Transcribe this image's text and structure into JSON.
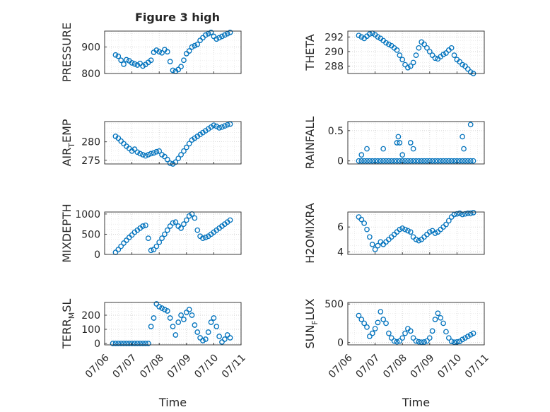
{
  "title": "Figure 3 high",
  "colors": {
    "marker": "#0072BD",
    "axis": "#262626",
    "grid": "#c8c8c8",
    "background": "#ffffff"
  },
  "x_tick_labels": [
    "07/06",
    "07/07",
    "07/08",
    "07/09",
    "07/10",
    "07/11"
  ],
  "chart_data": [
    {
      "type": "scatter",
      "ylabel_main": "PRESSURE",
      "ylabel_sub": "",
      "xlim": [
        0,
        5
      ],
      "ylim": [
        800,
        960
      ],
      "yticks": [
        800,
        900
      ],
      "show_xticks": false,
      "grid": true,
      "x": [
        0.4,
        0.5,
        0.6,
        0.7,
        0.8,
        0.9,
        1.0,
        1.1,
        1.2,
        1.3,
        1.4,
        1.5,
        1.6,
        1.7,
        1.8,
        1.9,
        2.0,
        2.1,
        2.2,
        2.3,
        2.4,
        2.5,
        2.6,
        2.7,
        2.8,
        2.9,
        3.0,
        3.1,
        3.2,
        3.3,
        3.4,
        3.5,
        3.6,
        3.7,
        3.8,
        3.9,
        4.0,
        4.1,
        4.2,
        4.3,
        4.4,
        4.5,
        4.6
      ],
      "y": [
        870,
        865,
        850,
        835,
        852,
        848,
        840,
        836,
        832,
        838,
        828,
        834,
        842,
        850,
        880,
        888,
        882,
        878,
        890,
        882,
        845,
        812,
        808,
        815,
        826,
        850,
        875,
        885,
        900,
        905,
        910,
        925,
        935,
        945,
        950,
        955,
        940,
        930,
        935,
        940,
        945,
        950,
        955
      ]
    },
    {
      "type": "scatter",
      "ylabel_main": "THETA",
      "ylabel_sub": "",
      "xlim": [
        0,
        5
      ],
      "ylim": [
        287,
        292.8
      ],
      "yticks": [
        288,
        290,
        292
      ],
      "show_xticks": false,
      "grid": true,
      "x": [
        0.4,
        0.5,
        0.6,
        0.7,
        0.8,
        0.9,
        1.0,
        1.1,
        1.2,
        1.3,
        1.4,
        1.5,
        1.6,
        1.7,
        1.8,
        1.9,
        2.0,
        2.1,
        2.2,
        2.3,
        2.4,
        2.5,
        2.6,
        2.7,
        2.8,
        2.9,
        3.0,
        3.1,
        3.2,
        3.3,
        3.4,
        3.5,
        3.6,
        3.7,
        3.8,
        3.9,
        4.0,
        4.1,
        4.2,
        4.3,
        4.4,
        4.5,
        4.6
      ],
      "y": [
        292.2,
        292.0,
        291.8,
        292.1,
        292.4,
        292.5,
        292.3,
        292.0,
        291.8,
        291.5,
        291.2,
        291.0,
        290.8,
        290.5,
        290.2,
        289.5,
        288.9,
        288.2,
        287.8,
        288.0,
        288.5,
        289.5,
        290.5,
        291.3,
        291.0,
        290.5,
        290.0,
        289.5,
        289.1,
        289.0,
        289.3,
        289.6,
        289.8,
        290.2,
        290.5,
        289.5,
        288.9,
        288.6,
        288.2,
        288.0,
        287.6,
        287.2,
        287.0
      ]
    },
    {
      "type": "scatter",
      "ylabel_main": "AIR",
      "ylabel_sub": "T",
      "ylabel_tail": "EMP",
      "xlim": [
        0,
        5
      ],
      "ylim": [
        274,
        285.5
      ],
      "yticks": [
        275,
        280
      ],
      "show_xticks": false,
      "grid": true,
      "x": [
        0.4,
        0.5,
        0.6,
        0.7,
        0.8,
        0.9,
        1.0,
        1.1,
        1.2,
        1.3,
        1.4,
        1.5,
        1.6,
        1.7,
        1.8,
        1.9,
        2.0,
        2.1,
        2.2,
        2.3,
        2.4,
        2.5,
        2.6,
        2.7,
        2.8,
        2.9,
        3.0,
        3.1,
        3.2,
        3.3,
        3.4,
        3.5,
        3.6,
        3.7,
        3.8,
        3.9,
        4.0,
        4.1,
        4.2,
        4.3,
        4.4,
        4.5,
        4.6
      ],
      "y": [
        281.5,
        281.0,
        280.2,
        279.5,
        278.8,
        278.2,
        277.5,
        278.0,
        277.2,
        276.8,
        276.5,
        276.2,
        276.5,
        276.8,
        277.0,
        277.3,
        277.5,
        276.5,
        276.0,
        275.2,
        274.2,
        274.0,
        274.5,
        275.5,
        276.5,
        277.5,
        278.5,
        279.5,
        280.5,
        281.0,
        281.5,
        282.0,
        282.5,
        283.0,
        283.5,
        284.0,
        284.5,
        284.2,
        283.8,
        284.0,
        284.3,
        284.6,
        284.8
      ]
    },
    {
      "type": "scatter",
      "ylabel_main": "RAINFALL",
      "ylabel_sub": "",
      "xlim": [
        0,
        5
      ],
      "ylim": [
        -0.05,
        0.65
      ],
      "yticks": [
        0,
        0.5
      ],
      "show_xticks": false,
      "grid": true,
      "x": [
        0.4,
        0.5,
        0.6,
        0.7,
        0.8,
        0.9,
        1.0,
        1.1,
        1.2,
        1.3,
        1.4,
        1.5,
        1.6,
        1.7,
        1.8,
        1.9,
        2.0,
        2.1,
        2.2,
        2.3,
        2.4,
        2.5,
        2.6,
        2.7,
        2.8,
        2.9,
        3.0,
        3.1,
        3.2,
        3.3,
        3.4,
        3.5,
        3.6,
        3.7,
        3.8,
        3.9,
        4.0,
        4.1,
        4.2,
        4.3,
        4.4,
        4.5,
        4.6,
        0.5,
        0.7,
        1.3,
        1.8,
        1.85,
        1.9,
        2.0,
        2.3,
        2.4,
        4.2,
        4.25,
        4.5
      ],
      "y": [
        0,
        0,
        0,
        0,
        0,
        0,
        0,
        0,
        0,
        0,
        0,
        0,
        0,
        0,
        0,
        0,
        0,
        0,
        0,
        0,
        0,
        0,
        0,
        0,
        0,
        0,
        0,
        0,
        0,
        0,
        0,
        0,
        0,
        0,
        0,
        0,
        0,
        0,
        0,
        0,
        0,
        0,
        0,
        0.1,
        0.2,
        0.2,
        0.3,
        0.4,
        0.3,
        0.1,
        0.3,
        0.2,
        0.4,
        0.2,
        0.6
      ]
    },
    {
      "type": "scatter",
      "ylabel_main": "MIXDEPTH",
      "ylabel_sub": "",
      "xlim": [
        0,
        5
      ],
      "ylim": [
        0,
        1050
      ],
      "yticks": [
        0,
        500,
        1000
      ],
      "show_xticks": false,
      "grid": true,
      "x": [
        0.4,
        0.5,
        0.6,
        0.7,
        0.8,
        0.9,
        1.0,
        1.1,
        1.2,
        1.3,
        1.4,
        1.5,
        1.6,
        1.7,
        1.8,
        1.9,
        2.0,
        2.1,
        2.2,
        2.3,
        2.4,
        2.5,
        2.6,
        2.7,
        2.8,
        2.9,
        3.0,
        3.1,
        3.2,
        3.3,
        3.4,
        3.5,
        3.6,
        3.7,
        3.8,
        3.9,
        4.0,
        4.1,
        4.2,
        4.3,
        4.4,
        4.5,
        4.6
      ],
      "y": [
        50,
        120,
        200,
        280,
        350,
        420,
        480,
        550,
        600,
        650,
        700,
        720,
        400,
        100,
        120,
        200,
        300,
        400,
        500,
        600,
        700,
        780,
        800,
        700,
        650,
        750,
        850,
        950,
        1000,
        900,
        600,
        450,
        400,
        420,
        450,
        500,
        550,
        600,
        650,
        700,
        750,
        800,
        850
      ]
    },
    {
      "type": "scatter",
      "ylabel_main": "H2OMIXRA",
      "ylabel_sub": "",
      "xlim": [
        0,
        5
      ],
      "ylim": [
        3.8,
        7.2
      ],
      "yticks": [
        4,
        6
      ],
      "show_xticks": false,
      "grid": true,
      "x": [
        0.4,
        0.5,
        0.6,
        0.7,
        0.8,
        0.9,
        1.0,
        1.1,
        1.2,
        1.3,
        1.4,
        1.5,
        1.6,
        1.7,
        1.8,
        1.9,
        2.0,
        2.1,
        2.2,
        2.3,
        2.4,
        2.5,
        2.6,
        2.7,
        2.8,
        2.9,
        3.0,
        3.1,
        3.2,
        3.3,
        3.4,
        3.5,
        3.6,
        3.7,
        3.8,
        3.9,
        4.0,
        4.1,
        4.2,
        4.3,
        4.4,
        4.5,
        4.6
      ],
      "y": [
        6.8,
        6.6,
        6.3,
        5.8,
        5.2,
        4.6,
        4.2,
        4.5,
        4.8,
        4.6,
        4.8,
        5.0,
        5.2,
        5.4,
        5.6,
        5.8,
        5.9,
        5.8,
        5.7,
        5.6,
        5.2,
        5.0,
        4.9,
        5.0,
        5.2,
        5.4,
        5.6,
        5.7,
        5.5,
        5.6,
        5.8,
        6.0,
        6.2,
        6.5,
        6.8,
        7.0,
        7.05,
        7.1,
        7.0,
        7.05,
        7.1,
        7.1,
        7.15
      ]
    },
    {
      "type": "scatter",
      "ylabel_main": "TERR",
      "ylabel_sub": "M",
      "ylabel_tail": "SL",
      "xlim": [
        0,
        5
      ],
      "ylim": [
        -10,
        290
      ],
      "yticks": [
        0,
        100,
        200
      ],
      "show_xticks": true,
      "grid": true,
      "x": [
        0.3,
        0.4,
        0.5,
        0.6,
        0.7,
        0.8,
        0.9,
        1.0,
        1.1,
        1.2,
        1.3,
        1.4,
        1.5,
        1.6,
        1.7,
        1.8,
        1.9,
        2.0,
        2.1,
        2.2,
        2.3,
        2.4,
        2.5,
        2.6,
        2.7,
        2.8,
        2.9,
        3.0,
        3.1,
        3.2,
        3.3,
        3.4,
        3.5,
        3.6,
        3.7,
        3.8,
        3.9,
        4.0,
        4.1,
        4.2,
        4.3,
        4.4,
        4.5,
        4.6
      ],
      "y": [
        0,
        0,
        0,
        0,
        0,
        0,
        0,
        0,
        0,
        0,
        0,
        0,
        0,
        0,
        120,
        180,
        280,
        260,
        250,
        240,
        230,
        180,
        120,
        60,
        150,
        200,
        170,
        220,
        240,
        200,
        130,
        80,
        40,
        20,
        30,
        80,
        150,
        180,
        120,
        50,
        10,
        30,
        60,
        40
      ]
    },
    {
      "type": "scatter",
      "ylabel_main": "SUN",
      "ylabel_sub": "F",
      "ylabel_tail": "LUX",
      "xlim": [
        0,
        5
      ],
      "ylim": [
        -30,
        520
      ],
      "yticks": [
        0,
        500
      ],
      "show_xticks": true,
      "grid": true,
      "x": [
        0.4,
        0.5,
        0.6,
        0.7,
        0.8,
        0.9,
        1.0,
        1.1,
        1.2,
        1.3,
        1.4,
        1.5,
        1.6,
        1.7,
        1.8,
        1.9,
        2.0,
        2.1,
        2.2,
        2.3,
        2.4,
        2.5,
        2.6,
        2.7,
        2.8,
        2.9,
        3.0,
        3.1,
        3.2,
        3.3,
        3.4,
        3.5,
        3.6,
        3.7,
        3.8,
        3.9,
        4.0,
        4.1,
        4.2,
        4.3,
        4.4,
        4.5,
        4.6
      ],
      "y": [
        350,
        300,
        250,
        200,
        80,
        120,
        180,
        260,
        400,
        300,
        250,
        120,
        60,
        20,
        10,
        20,
        60,
        120,
        180,
        150,
        60,
        20,
        10,
        5,
        8,
        20,
        60,
        150,
        300,
        380,
        320,
        250,
        140,
        60,
        15,
        5,
        8,
        15,
        40,
        60,
        80,
        100,
        120
      ]
    }
  ],
  "xlabel": "Time"
}
